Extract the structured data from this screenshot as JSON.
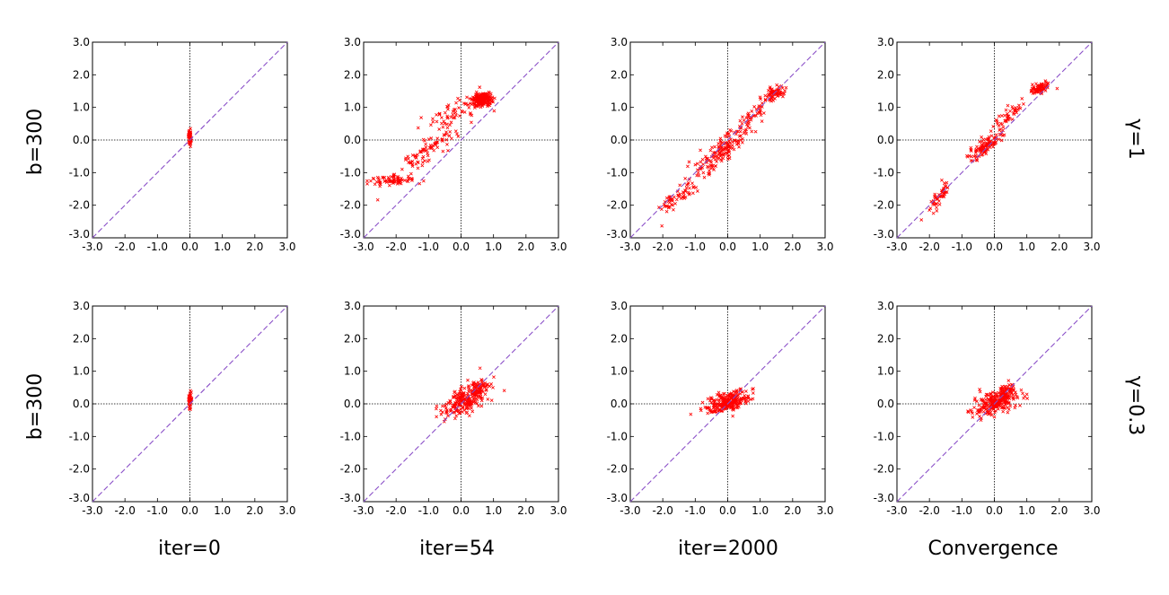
{
  "figure": {
    "column_titles": [
      "iter=0",
      "iter=54",
      "iter=2000",
      "Convergence"
    ],
    "row_left_labels": [
      "b=300",
      "b=300"
    ],
    "row_right_labels": [
      "γ=1",
      "γ=0.3"
    ]
  },
  "colors": {
    "points": "#ff0000",
    "diagonal": "#8a4fc8",
    "axes_lines": "#000000"
  },
  "chart_data": [
    {
      "type": "scatter",
      "row": 0,
      "col": 0,
      "column_title": "iter=0",
      "row_label_left": "b=300",
      "row_label_right": "γ=1",
      "xlim": [
        -3,
        3
      ],
      "ylim": [
        -3,
        3
      ],
      "ticks": [
        "-3.0",
        "-2.0",
        "-1.0",
        "0.0",
        "1.0",
        "2.0",
        "3.0"
      ],
      "diagonal": true,
      "zero_lines": true,
      "clusters": [
        {
          "cx": 0.0,
          "cy": 0.1,
          "sx": 0.02,
          "sy": 0.12,
          "n": 60,
          "rho": 0
        }
      ]
    },
    {
      "type": "scatter",
      "row": 0,
      "col": 1,
      "column_title": "iter=54",
      "row_label_left": "b=300",
      "row_label_right": "γ=1",
      "xlim": [
        -3,
        3
      ],
      "ylim": [
        -3,
        3
      ],
      "ticks": [
        "-3.0",
        "-2.0",
        "-1.0",
        "0.0",
        "1.0",
        "2.0",
        "3.0"
      ],
      "diagonal": true,
      "zero_lines": true,
      "clusters": [
        {
          "cx": -2.2,
          "cy": -1.25,
          "sx": 0.4,
          "sy": 0.08,
          "n": 70,
          "rho": 0.2
        },
        {
          "cx": -1.1,
          "cy": -0.4,
          "sx": 0.45,
          "sy": 0.35,
          "n": 90,
          "rho": 0.9
        },
        {
          "cx": -0.3,
          "cy": 0.75,
          "sx": 0.45,
          "sy": 0.25,
          "n": 60,
          "rho": 0.7
        },
        {
          "cx": 0.65,
          "cy": 1.25,
          "sx": 0.17,
          "sy": 0.1,
          "n": 160,
          "rho": 0
        }
      ]
    },
    {
      "type": "scatter",
      "row": 0,
      "col": 2,
      "column_title": "iter=2000",
      "row_label_left": "b=300",
      "row_label_right": "γ=1",
      "xlim": [
        -3,
        3
      ],
      "ylim": [
        -3,
        3
      ],
      "ticks": [
        "-3.0",
        "-2.0",
        "-1.0",
        "0.0",
        "1.0",
        "2.0",
        "3.0"
      ],
      "diagonal": true,
      "zero_lines": true,
      "clusters": [
        {
          "cx": -1.5,
          "cy": -1.7,
          "sx": 0.35,
          "sy": 0.3,
          "n": 60,
          "rho": 0.85
        },
        {
          "cx": -0.2,
          "cy": -0.35,
          "sx": 0.4,
          "sy": 0.35,
          "n": 160,
          "rho": 0.85
        },
        {
          "cx": 0.8,
          "cy": 0.8,
          "sx": 0.3,
          "sy": 0.3,
          "n": 50,
          "rho": 0.9
        },
        {
          "cx": 1.45,
          "cy": 1.45,
          "sx": 0.15,
          "sy": 0.1,
          "n": 60,
          "rho": 0.3
        }
      ]
    },
    {
      "type": "scatter",
      "row": 0,
      "col": 3,
      "column_title": "Convergence",
      "row_label_left": "b=300",
      "row_label_right": "γ=1",
      "xlim": [
        -3,
        3
      ],
      "ylim": [
        -3,
        3
      ],
      "ticks": [
        "-3.0",
        "-2.0",
        "-1.0",
        "0.0",
        "1.0",
        "2.0",
        "3.0"
      ],
      "diagonal": true,
      "zero_lines": true,
      "clusters": [
        {
          "cx": -1.7,
          "cy": -1.75,
          "sx": 0.2,
          "sy": 0.25,
          "n": 50,
          "rho": 0.8
        },
        {
          "cx": -0.3,
          "cy": -0.2,
          "sx": 0.25,
          "sy": 0.2,
          "n": 110,
          "rho": 0.8
        },
        {
          "cx": 0.4,
          "cy": 0.7,
          "sx": 0.35,
          "sy": 0.35,
          "n": 50,
          "rho": 0.9
        },
        {
          "cx": 1.4,
          "cy": 1.58,
          "sx": 0.15,
          "sy": 0.08,
          "n": 80,
          "rho": 0.3
        }
      ]
    },
    {
      "type": "scatter",
      "row": 1,
      "col": 0,
      "column_title": "iter=0",
      "row_label_left": "b=300",
      "row_label_right": "γ=0.3",
      "xlim": [
        -3,
        3
      ],
      "ylim": [
        -3,
        3
      ],
      "ticks": [
        "-3.0",
        "-2.0",
        "-1.0",
        "0.0",
        "1.0",
        "2.0",
        "3.0"
      ],
      "diagonal": true,
      "zero_lines": true,
      "clusters": [
        {
          "cx": 0.0,
          "cy": 0.1,
          "sx": 0.02,
          "sy": 0.12,
          "n": 60,
          "rho": 0
        }
      ]
    },
    {
      "type": "scatter",
      "row": 1,
      "col": 1,
      "column_title": "iter=54",
      "row_label_left": "b=300",
      "row_label_right": "γ=0.3",
      "xlim": [
        -3,
        3
      ],
      "ylim": [
        -3,
        3
      ],
      "ticks": [
        "-3.0",
        "-2.0",
        "-1.0",
        "0.0",
        "1.0",
        "2.0",
        "3.0"
      ],
      "diagonal": true,
      "zero_lines": true,
      "clusters": [
        {
          "cx": 0.1,
          "cy": 0.1,
          "sx": 0.38,
          "sy": 0.25,
          "n": 200,
          "rho": 0.6
        },
        {
          "cx": 0.55,
          "cy": 0.45,
          "sx": 0.15,
          "sy": 0.15,
          "n": 60,
          "rho": 0.5
        }
      ]
    },
    {
      "type": "scatter",
      "row": 1,
      "col": 2,
      "column_title": "iter=2000",
      "row_label_left": "b=300",
      "row_label_right": "γ=0.3",
      "xlim": [
        -3,
        3
      ],
      "ylim": [
        -3,
        3
      ],
      "ticks": [
        "-3.0",
        "-2.0",
        "-1.0",
        "0.0",
        "1.0",
        "2.0",
        "3.0"
      ],
      "diagonal": true,
      "zero_lines": true,
      "clusters": [
        {
          "cx": 0.0,
          "cy": 0.05,
          "sx": 0.33,
          "sy": 0.18,
          "n": 260,
          "rho": 0.5
        }
      ]
    },
    {
      "type": "scatter",
      "row": 1,
      "col": 3,
      "column_title": "Convergence",
      "row_label_left": "b=300",
      "row_label_right": "γ=0.3",
      "xlim": [
        -3,
        3
      ],
      "ylim": [
        -3,
        3
      ],
      "ticks": [
        "-3.0",
        "-2.0",
        "-1.0",
        "0.0",
        "1.0",
        "2.0",
        "3.0"
      ],
      "diagonal": true,
      "zero_lines": true,
      "clusters": [
        {
          "cx": 0.05,
          "cy": 0.05,
          "sx": 0.32,
          "sy": 0.2,
          "n": 220,
          "rho": 0.5
        },
        {
          "cx": 0.35,
          "cy": 0.35,
          "sx": 0.12,
          "sy": 0.12,
          "n": 60,
          "rho": 0.4
        }
      ]
    }
  ]
}
